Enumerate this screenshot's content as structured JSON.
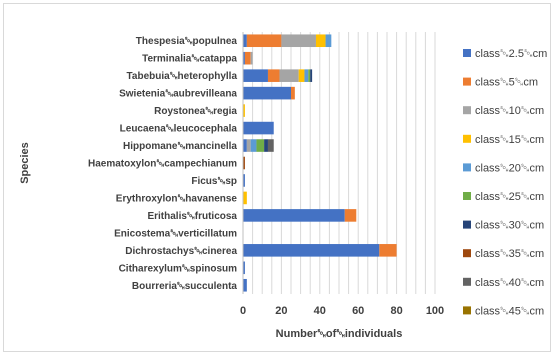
{
  "chart_data": {
    "type": "bar",
    "orientation": "horizontal",
    "stacked": true,
    "xlabel": "Number␁of␁individuals",
    "ylabel": "Species",
    "xlim": [
      0,
      100
    ],
    "xticks": [
      0,
      20,
      40,
      60,
      80,
      100
    ],
    "grid": "vertical",
    "legend_position": "right",
    "categories": [
      "Thespesia␁populnea",
      "Terminalia␁catappa",
      "Tabebuia␁heterophylla",
      "Swietenia␁aubrevilleana",
      "Roystonea␁regia",
      "Leucaena␁leucocephala",
      "Hippomane␁mancinella",
      "Haematoxylon␁campechianum",
      "Ficus␁sp",
      "Erythroxylon␁havanense",
      "Erithalis␁fruticosa",
      "Enicostema␁verticillatum",
      "Dichrostachys␁cinerea",
      "Citharexylum␁spinosum",
      "Bourreria␁succulenta"
    ],
    "series": [
      {
        "name": "class␁2.5␁cm",
        "color": "#4472C4",
        "values": [
          2,
          1,
          13,
          25,
          0,
          16,
          2,
          0,
          1,
          0,
          53,
          0,
          71,
          1,
          2
        ]
      },
      {
        "name": "class␁5␁cm",
        "color": "#ED7D31",
        "values": [
          18,
          3,
          6,
          2,
          0,
          0,
          0,
          0,
          0,
          0,
          6,
          0,
          9,
          0,
          0
        ]
      },
      {
        "name": "class␁10␁cm",
        "color": "#A5A5A5",
        "values": [
          18,
          1,
          10,
          0,
          0,
          0,
          2,
          0,
          0,
          0,
          0,
          0,
          0,
          0,
          0
        ]
      },
      {
        "name": "class␁15␁cm",
        "color": "#FFC000",
        "values": [
          5,
          0,
          3,
          0,
          1,
          0,
          0,
          0,
          0,
          2,
          0,
          0,
          0,
          0,
          0
        ]
      },
      {
        "name": "class␁20␁cm",
        "color": "#5B9BD5",
        "values": [
          3,
          0,
          2,
          0,
          0,
          0,
          3,
          0,
          0,
          0,
          0,
          0,
          0,
          0,
          0
        ]
      },
      {
        "name": "class␁25␁cm",
        "color": "#70AD47",
        "values": [
          0,
          0,
          1,
          0,
          0,
          0,
          4,
          0,
          0,
          0,
          0,
          0,
          0,
          0,
          0
        ]
      },
      {
        "name": "class␁30␁cm",
        "color": "#264478",
        "values": [
          0,
          0,
          1,
          0,
          0,
          0,
          2,
          0,
          0,
          0,
          0,
          0,
          0,
          0,
          0
        ]
      },
      {
        "name": "class␁35␁cm",
        "color": "#9E480E",
        "values": [
          0,
          0,
          0,
          0,
          0,
          0,
          0,
          1,
          0,
          0,
          0,
          0,
          0,
          0,
          0
        ]
      },
      {
        "name": "class␁40␁cm",
        "color": "#636363",
        "values": [
          0,
          0,
          0,
          0,
          0,
          0,
          3,
          0,
          0,
          0,
          0,
          0,
          0,
          0,
          0
        ]
      },
      {
        "name": "class␁45␁cm",
        "color": "#997300",
        "values": [
          0,
          0,
          0,
          0,
          0,
          0,
          0,
          0,
          0,
          0,
          0,
          0,
          0,
          0,
          0
        ]
      }
    ]
  }
}
